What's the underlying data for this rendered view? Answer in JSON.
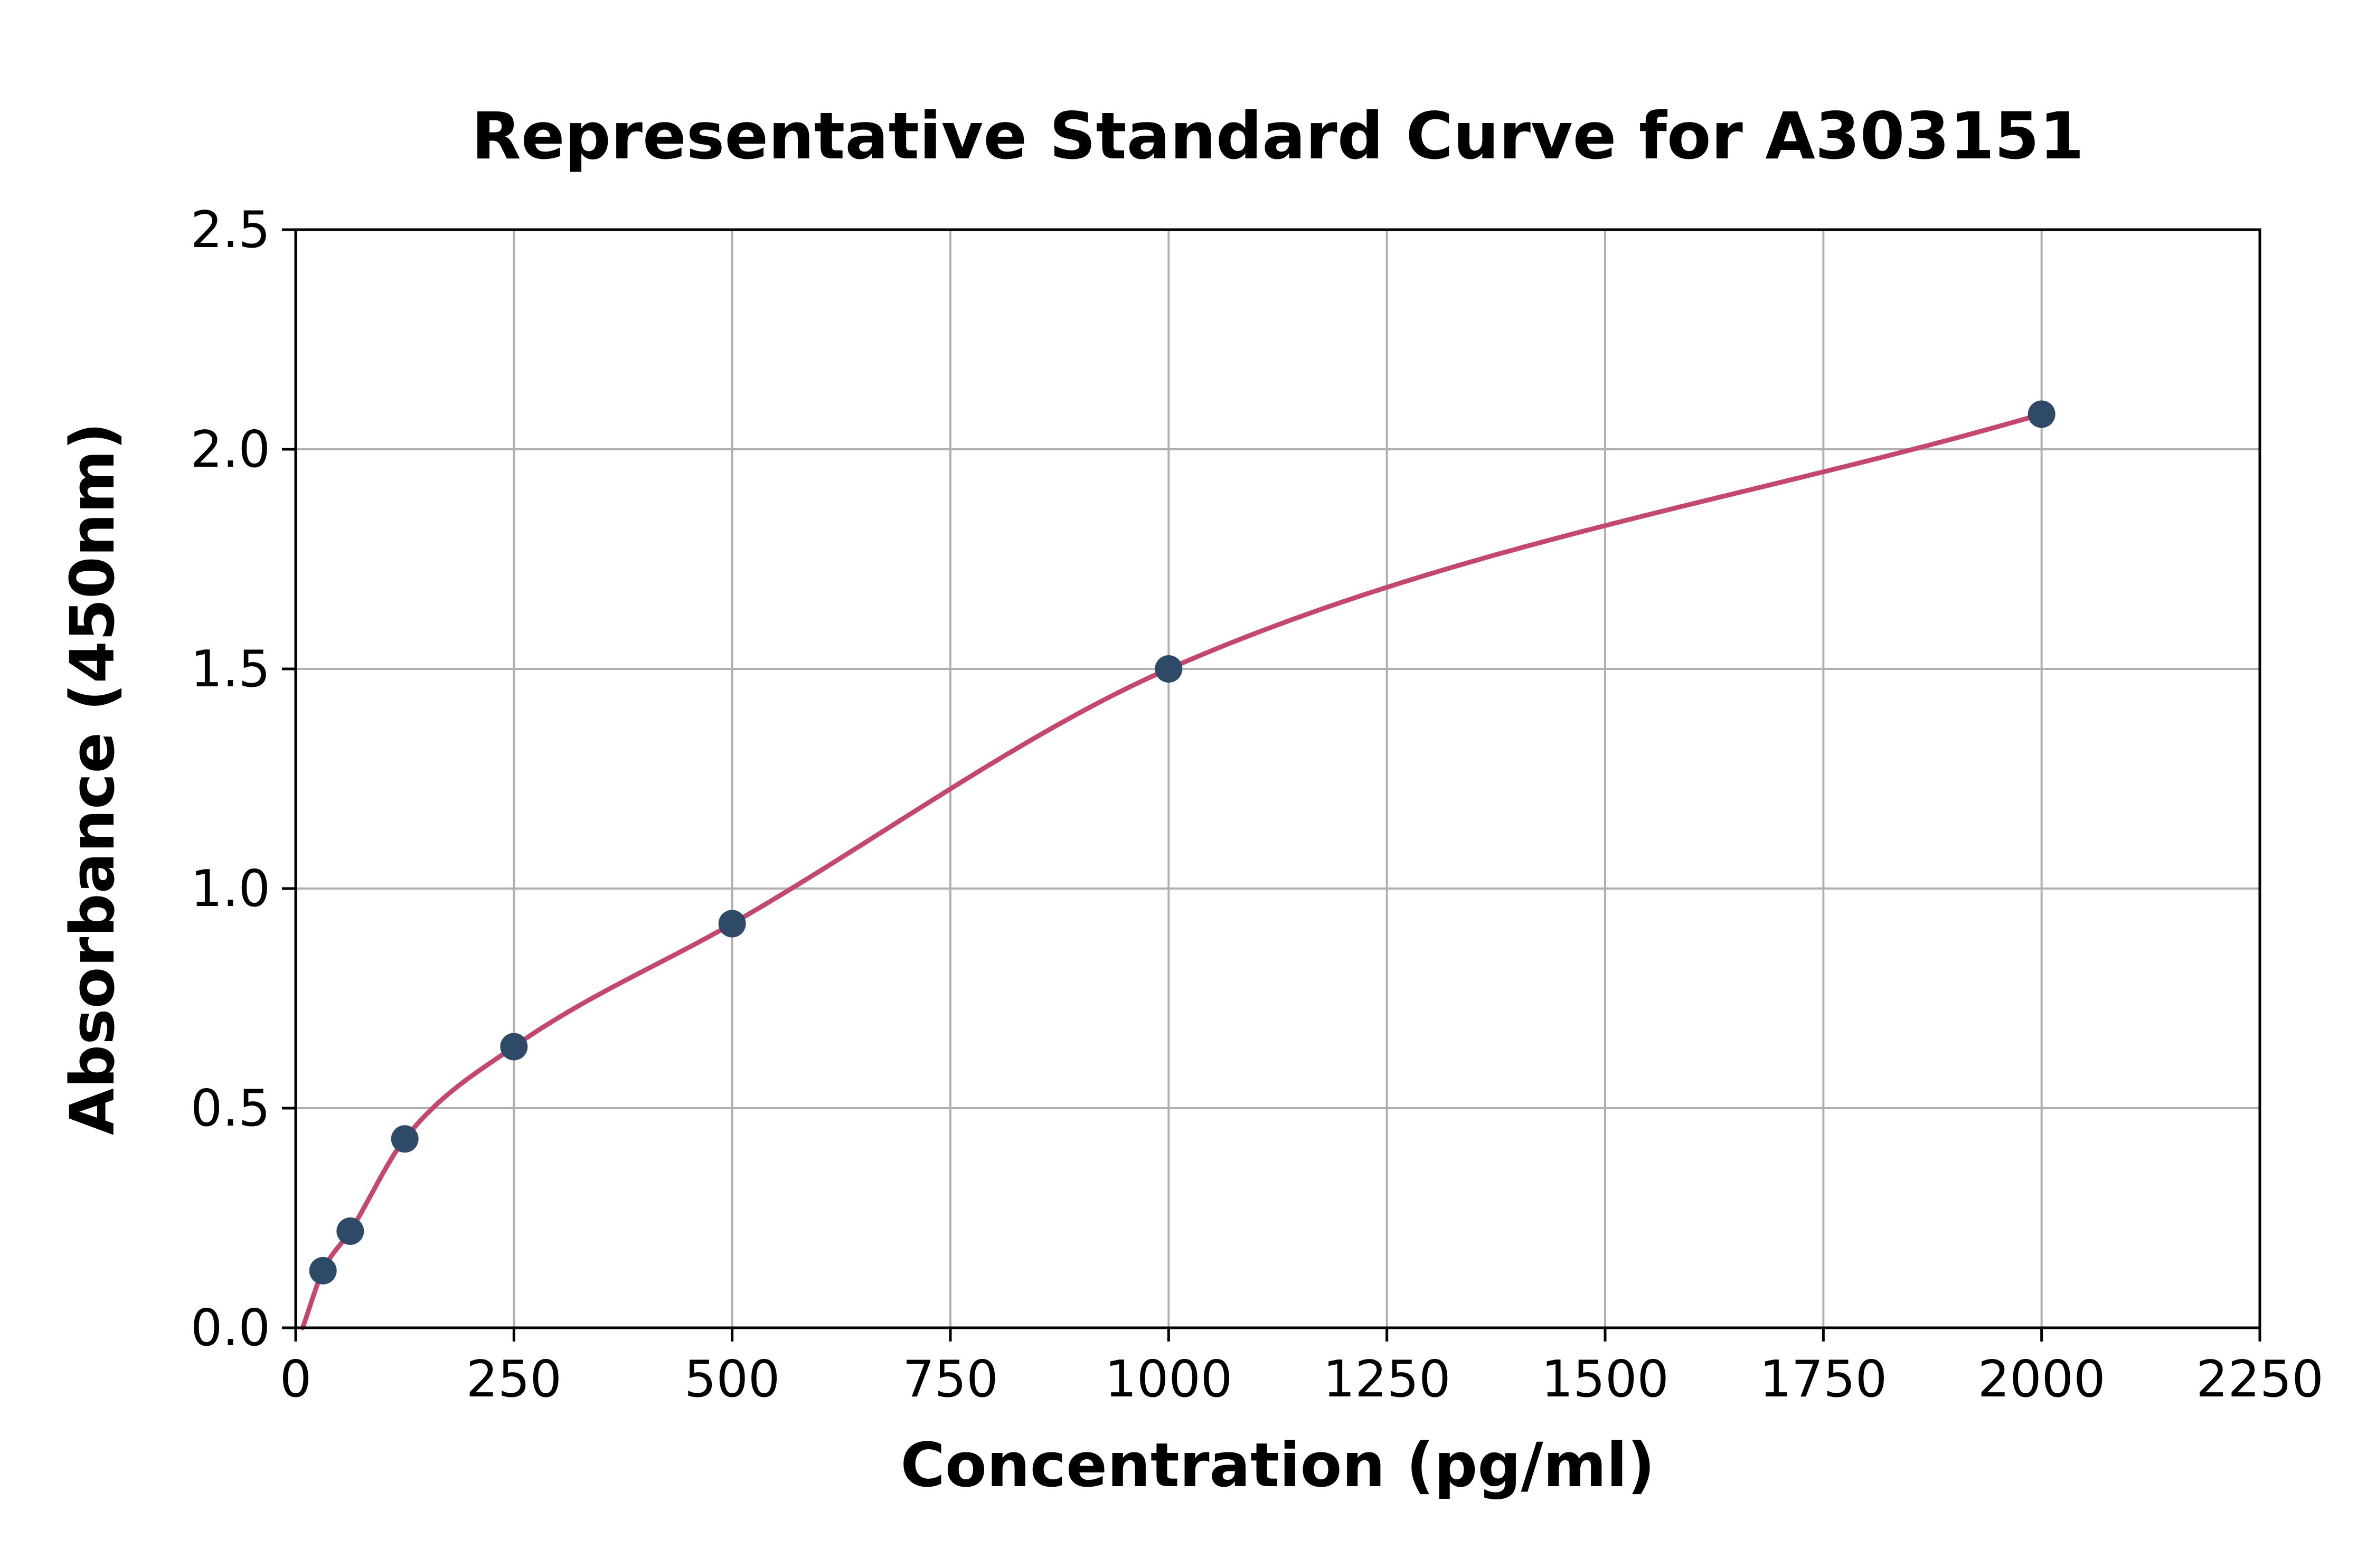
{
  "chart_data": {
    "type": "scatter",
    "title": "Representative Standard Curve for A303151",
    "xlabel": "Concentration (pg/ml)",
    "ylabel": "Absorbance (450nm)",
    "xlim": [
      0,
      2250
    ],
    "ylim": [
      0,
      2.5
    ],
    "x_ticks": [
      0,
      250,
      500,
      750,
      1000,
      1250,
      1500,
      1750,
      2000,
      2250
    ],
    "x_tick_labels": [
      "0",
      "250",
      "500",
      "750",
      "1000",
      "1250",
      "1500",
      "1750",
      "2000",
      "2250"
    ],
    "y_ticks": [
      0,
      0.5,
      1.0,
      1.5,
      2.0,
      2.5
    ],
    "y_tick_labels": [
      "0.0",
      "0.5",
      "1.0",
      "1.5",
      "2.0",
      "2.5"
    ],
    "grid": true,
    "legend": "none",
    "series": [
      {
        "name": "standards",
        "points": [
          {
            "x": 31.25,
            "y": 0.13
          },
          {
            "x": 62.5,
            "y": 0.22
          },
          {
            "x": 125,
            "y": 0.43
          },
          {
            "x": 250,
            "y": 0.64
          },
          {
            "x": 500,
            "y": 0.92
          },
          {
            "x": 1000,
            "y": 1.5
          },
          {
            "x": 2000,
            "y": 2.08
          }
        ]
      }
    ],
    "fit_curve_start": {
      "x": 8,
      "y": 0.0
    },
    "colors": {
      "curve": "#c4486e",
      "marker": "#2e4a66",
      "grid": "#b0b0b0",
      "axis": "#000000",
      "background": "#ffffff"
    }
  }
}
